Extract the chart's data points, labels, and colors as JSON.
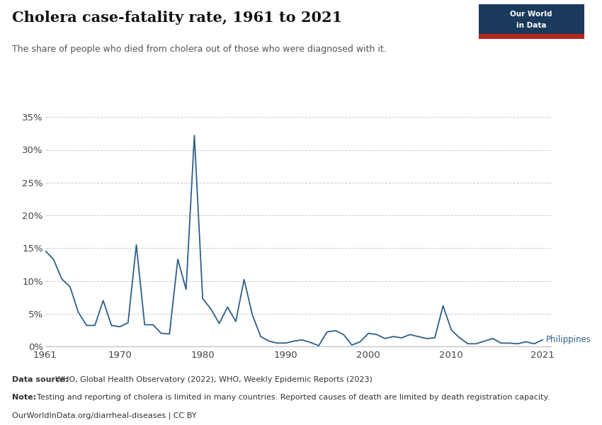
{
  "title": "Cholera case-fatality rate, 1961 to 2021",
  "subtitle": "The share of people who died from cholera out of those who were diagnosed with it.",
  "line_color": "#2d5f8a",
  "label_color": "#2d5f8a",
  "background_color": "#ffffff",
  "grid_color": "#cccccc",
  "note_datasource": "Data source: ",
  "note_datasource_rest": "WHO, Global Health Observatory (2022); WHO, Weekly Epidemic Reports (2023)",
  "note_note": "Note: ",
  "note_note_rest": "Testing and reporting of cholera is limited in many countries. Reported causes of death are limited by death registration capacity.",
  "note_line3": "OurWorldInData.org/diarrheal-diseases | CC BY",
  "series_label": "Philippines",
  "data": [
    [
      1961,
      0.146
    ],
    [
      1962,
      0.133
    ],
    [
      1963,
      0.103
    ],
    [
      1964,
      0.091
    ],
    [
      1965,
      0.052
    ],
    [
      1966,
      0.032
    ],
    [
      1967,
      0.032
    ],
    [
      1968,
      0.07
    ],
    [
      1969,
      0.032
    ],
    [
      1970,
      0.03
    ],
    [
      1971,
      0.036
    ],
    [
      1972,
      0.155
    ],
    [
      1973,
      0.033
    ],
    [
      1974,
      0.033
    ],
    [
      1975,
      0.02
    ],
    [
      1976,
      0.019
    ],
    [
      1977,
      0.133
    ],
    [
      1978,
      0.087
    ],
    [
      1979,
      0.322
    ],
    [
      1980,
      0.073
    ],
    [
      1981,
      0.057
    ],
    [
      1982,
      0.035
    ],
    [
      1983,
      0.06
    ],
    [
      1984,
      0.038
    ],
    [
      1985,
      0.102
    ],
    [
      1986,
      0.048
    ],
    [
      1987,
      0.015
    ],
    [
      1988,
      0.008
    ],
    [
      1989,
      0.005
    ],
    [
      1990,
      0.005
    ],
    [
      1991,
      0.008
    ],
    [
      1992,
      0.01
    ],
    [
      1993,
      0.006
    ],
    [
      1994,
      0.001
    ],
    [
      1995,
      0.022
    ],
    [
      1996,
      0.024
    ],
    [
      1997,
      0.018
    ],
    [
      1998,
      0.002
    ],
    [
      1999,
      0.007
    ],
    [
      2000,
      0.02
    ],
    [
      2001,
      0.018
    ],
    [
      2002,
      0.012
    ],
    [
      2003,
      0.015
    ],
    [
      2004,
      0.013
    ],
    [
      2005,
      0.018
    ],
    [
      2006,
      0.015
    ],
    [
      2007,
      0.012
    ],
    [
      2008,
      0.013
    ],
    [
      2009,
      0.062
    ],
    [
      2010,
      0.025
    ],
    [
      2011,
      0.013
    ],
    [
      2012,
      0.004
    ],
    [
      2013,
      0.004
    ],
    [
      2014,
      0.008
    ],
    [
      2015,
      0.012
    ],
    [
      2016,
      0.005
    ],
    [
      2017,
      0.005
    ],
    [
      2018,
      0.004
    ],
    [
      2019,
      0.007
    ],
    [
      2020,
      0.004
    ],
    [
      2021,
      0.01
    ]
  ],
  "ylim": [
    0,
    0.36
  ],
  "xlim": [
    1961,
    2022
  ],
  "yticks": [
    0.0,
    0.05,
    0.1,
    0.15,
    0.2,
    0.25,
    0.3,
    0.35
  ],
  "xticks": [
    1961,
    1970,
    1980,
    1990,
    2000,
    2010,
    2021
  ],
  "owid_box_color": "#1a3a5c",
  "owid_bar_color": "#b5271e"
}
